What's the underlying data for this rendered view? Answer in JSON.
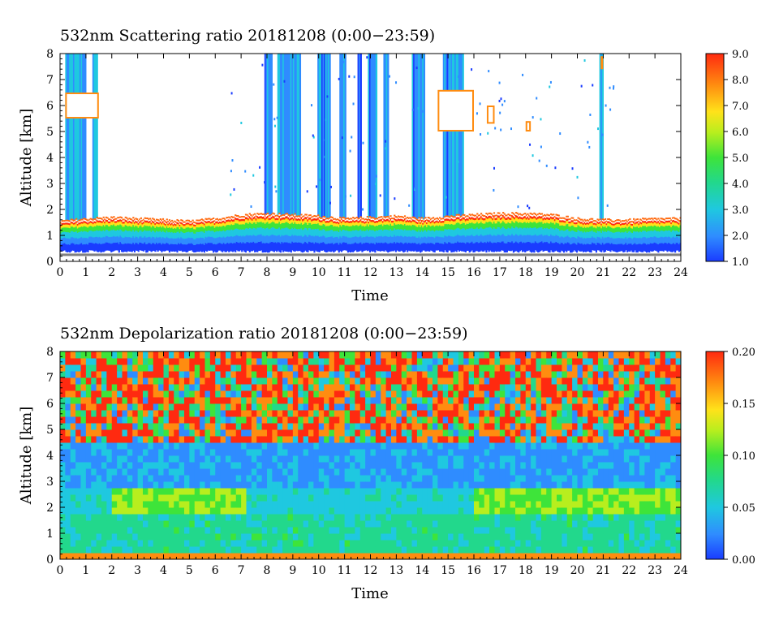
{
  "chart_data": [
    {
      "type": "heatmap",
      "title": "532nm Scattering ratio  20181208 (0:00−23:59)",
      "xlabel": "Time",
      "ylabel": "Altitude [km]",
      "xlim": [
        0,
        24
      ],
      "ylim": [
        0,
        8
      ],
      "x_ticks": [
        "0",
        "1",
        "2",
        "3",
        "4",
        "5",
        "6",
        "7",
        "8",
        "9",
        "10",
        "11",
        "12",
        "13",
        "14",
        "15",
        "16",
        "17",
        "18",
        "19",
        "20",
        "21",
        "22",
        "23",
        "24"
      ],
      "y_ticks": [
        "0",
        "1",
        "2",
        "3",
        "4",
        "5",
        "6",
        "7",
        "8"
      ],
      "colorbar": {
        "min": 1.0,
        "max": 9.0,
        "ticks": [
          "1.0",
          "2.0",
          "3.0",
          "4.0",
          "5.0",
          "6.0",
          "7.0",
          "8.0",
          "9.0"
        ]
      },
      "boundary_layer_top_km": [
        [
          0,
          1.5
        ],
        [
          1,
          1.6
        ],
        [
          2,
          1.65
        ],
        [
          3,
          1.6
        ],
        [
          4,
          1.55
        ],
        [
          5,
          1.5
        ],
        [
          6,
          1.6
        ],
        [
          7,
          1.75
        ],
        [
          8,
          1.8
        ],
        [
          9,
          1.75
        ],
        [
          10,
          1.7
        ],
        [
          11,
          1.6
        ],
        [
          12,
          1.65
        ],
        [
          13,
          1.7
        ],
        [
          14,
          1.6
        ],
        [
          15,
          1.7
        ],
        [
          16,
          1.75
        ],
        [
          17,
          1.8
        ],
        [
          18,
          1.8
        ],
        [
          19,
          1.75
        ],
        [
          20,
          1.6
        ],
        [
          21,
          1.55
        ],
        [
          22,
          1.55
        ],
        [
          23,
          1.6
        ],
        [
          24,
          1.6
        ]
      ],
      "cloud_columns_hours": [
        [
          0.2,
          1.0
        ],
        [
          1.25,
          1.45
        ],
        [
          7.9,
          8.2
        ],
        [
          8.4,
          9.3
        ],
        [
          9.95,
          10.45
        ],
        [
          10.8,
          11.05
        ],
        [
          11.5,
          11.65
        ],
        [
          11.9,
          12.25
        ],
        [
          12.5,
          12.7
        ],
        [
          13.6,
          14.1
        ],
        [
          14.8,
          15.6
        ],
        [
          20.85,
          21.0
        ]
      ],
      "high_ratio_patches": [
        {
          "t": [
            0.2,
            1.5
          ],
          "z": [
            5.5,
            6.5
          ]
        },
        {
          "t": [
            14.6,
            16.0
          ],
          "z": [
            5.0,
            6.6
          ]
        },
        {
          "t": [
            16.5,
            16.8
          ],
          "z": [
            5.3,
            6.0
          ]
        },
        {
          "t": [
            18.0,
            18.2
          ],
          "z": [
            5.0,
            5.4
          ]
        },
        {
          "t": [
            20.9,
            21.0
          ],
          "z": [
            7.4,
            7.9
          ]
        }
      ]
    },
    {
      "type": "heatmap",
      "title": "532nm Depolarization ratio  20181208 (0:00−23:59)",
      "xlabel": "Time",
      "ylabel": "Altitude [km]",
      "xlim": [
        0,
        24
      ],
      "ylim": [
        0,
        8
      ],
      "x_ticks": [
        "0",
        "1",
        "2",
        "3",
        "4",
        "5",
        "6",
        "7",
        "8",
        "9",
        "10",
        "11",
        "12",
        "13",
        "14",
        "15",
        "16",
        "17",
        "18",
        "19",
        "20",
        "21",
        "22",
        "23",
        "24"
      ],
      "y_ticks": [
        "0",
        "1",
        "2",
        "3",
        "4",
        "5",
        "6",
        "7",
        "8"
      ],
      "colorbar": {
        "min": 0.0,
        "max": 0.2,
        "ticks": [
          "0.00",
          "0.05",
          "0.10",
          "0.15",
          "0.20"
        ]
      },
      "green_layer_km": [
        1.6,
        2.6
      ],
      "green_layer_hours": [
        [
          1.8,
          7.2
        ],
        [
          15.8,
          24
        ]
      ],
      "noisy_region_above_km": 4.5
    }
  ]
}
